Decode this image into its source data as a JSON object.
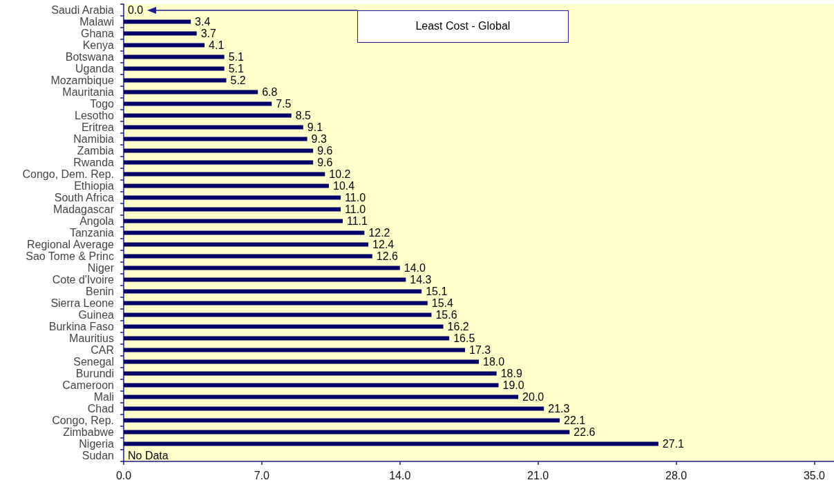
{
  "chart_data": {
    "type": "bar",
    "orientation": "horizontal",
    "categories": [
      "Saudi Arabia",
      "Malawi",
      "Ghana",
      "Kenya",
      "Botswana",
      "Uganda",
      "Mozambique",
      "Mauritania",
      "Togo",
      "Lesotho",
      "Eritrea",
      "Namibia",
      "Zambia",
      "Rwanda",
      "Congo, Dem. Rep.",
      "Ethiopia",
      "South Africa",
      "Madagascar",
      "Angola",
      "Tanzania",
      "Regional Average",
      "Sao Tome & Princ",
      "Niger",
      "Cote d'Ivoire",
      "Benin",
      "Sierra Leone",
      "Guinea",
      "Burkina Faso",
      "Mauritius",
      "CAR",
      "Senegal",
      "Burundi",
      "Cameroon",
      "Mali",
      "Chad",
      "Congo, Rep.",
      "Zimbabwe",
      "Nigeria",
      "Sudan"
    ],
    "values": [
      0.0,
      3.4,
      3.7,
      4.1,
      5.1,
      5.1,
      5.2,
      6.8,
      7.5,
      8.5,
      9.1,
      9.3,
      9.6,
      9.6,
      10.2,
      10.4,
      11.0,
      11.0,
      11.1,
      12.2,
      12.4,
      12.6,
      14.0,
      14.3,
      15.1,
      15.4,
      15.6,
      16.2,
      16.5,
      17.3,
      18.0,
      18.9,
      19.0,
      20.0,
      21.3,
      22.1,
      22.6,
      27.1,
      null
    ],
    "value_labels": [
      "0.0",
      "3.4",
      "3.7",
      "4.1",
      "5.1",
      "5.1",
      "5.2",
      "6.8",
      "7.5",
      "8.5",
      "9.1",
      "9.3",
      "9.6",
      "9.6",
      "10.2",
      "10.4",
      "11.0",
      "11.0",
      "11.1",
      "12.2",
      "12.4",
      "12.6",
      "14.0",
      "14.3",
      "15.1",
      "15.4",
      "15.6",
      "16.2",
      "16.5",
      "17.3",
      "18.0",
      "18.9",
      "19.0",
      "20.0",
      "21.3",
      "22.1",
      "22.6",
      "27.1",
      "No Data"
    ],
    "color": "#000066",
    "xlim": [
      0,
      36
    ],
    "xticks": [
      {
        "value": 0,
        "label": "0.0"
      },
      {
        "value": 7,
        "label": "7.0"
      },
      {
        "value": 14,
        "label": "14.0"
      },
      {
        "value": 21,
        "label": "21.0"
      },
      {
        "value": 28,
        "label": "28.0"
      },
      {
        "value": 35,
        "label": "35.0"
      }
    ],
    "annotations": [
      "Least Cost - Global"
    ]
  }
}
